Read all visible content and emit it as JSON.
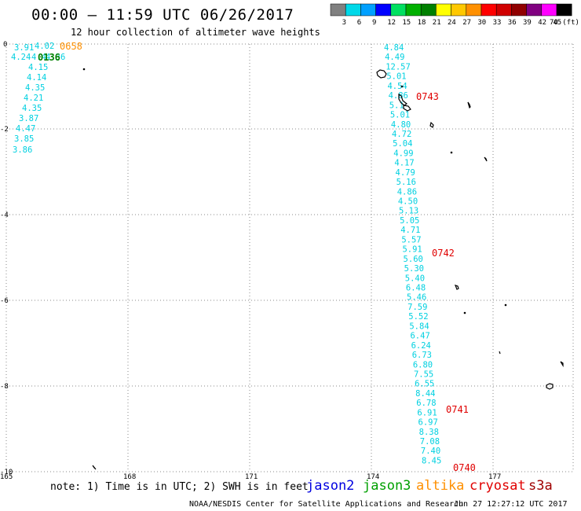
{
  "header": {
    "title": "00:00 – 11:59 UTC 06/26/2017",
    "subtitle": "12 hour collection of altimeter wave heights"
  },
  "colorbar": {
    "labels": [
      "3",
      "6",
      "9",
      "12",
      "15",
      "18",
      "21",
      "24",
      "27",
      "30",
      "33",
      "36",
      "39",
      "42",
      "45",
      "70 (ft)"
    ],
    "colors": [
      "#808080",
      "#00d8e8",
      "#00a0ff",
      "#0000ff",
      "#00e060",
      "#00b000",
      "#008000",
      "#ffff00",
      "#ffc800",
      "#ff9000",
      "#ff0000",
      "#d00000",
      "#900000",
      "#800080",
      "#ff00ff",
      "#000000"
    ]
  },
  "axes": {
    "x_ticks": [
      "165",
      "168",
      "171",
      "174",
      "177"
    ],
    "y_ticks": [
      "0",
      "-2",
      "-4",
      "-6",
      "-8",
      "-10"
    ]
  },
  "swh_labels_left": [
    "3.91",
    "4.02",
    "4.24",
    "4.4",
    "4.36",
    "4.15",
    "4.14",
    "4.35",
    "4.21",
    "4.35",
    "3.87",
    "4.47",
    "3.85",
    "3.86"
  ],
  "swh_labels_right": [
    "4.84",
    "4.49",
    "12.57",
    "5.01",
    "4.54",
    "4.86",
    "5.1",
    "5.01",
    "4.80",
    "4.72",
    "5.04",
    "4.99",
    "4.17",
    "4.79",
    "5.16",
    "4.86",
    "4.50",
    "5.13",
    "5.05",
    "4.71",
    "5.57",
    "5.91",
    "5.60",
    "5.30",
    "5.40",
    "6.48",
    "5.46",
    "7.59",
    "5.52",
    "5.84",
    "6.47",
    "6.24",
    "6.73",
    "6.80",
    "7.55",
    "6.55",
    "8.44",
    "6.78",
    "6.91",
    "6.97",
    "8.38",
    "7.08",
    "7.40",
    "8.45"
  ],
  "time_labels": {
    "orange": "0658",
    "green": "0136",
    "red": [
      "0743",
      "0742",
      "0741",
      "0740"
    ]
  },
  "note": "note: 1) Time is in UTC; 2) SWH is in feet",
  "satellites": [
    {
      "name": "jason2",
      "color": "#0000e0"
    },
    {
      "name": "jason3",
      "color": "#00a000"
    },
    {
      "name": "altika",
      "color": "#ff9000"
    },
    {
      "name": "cryosat",
      "color": "#e00000"
    },
    {
      "name": "s3a",
      "color": "#a00000"
    }
  ],
  "footer": {
    "left": "NOAA/NESDIS Center for Satellite Applications and Research",
    "right": "Jun 27 12:27:12 UTC 2017"
  }
}
